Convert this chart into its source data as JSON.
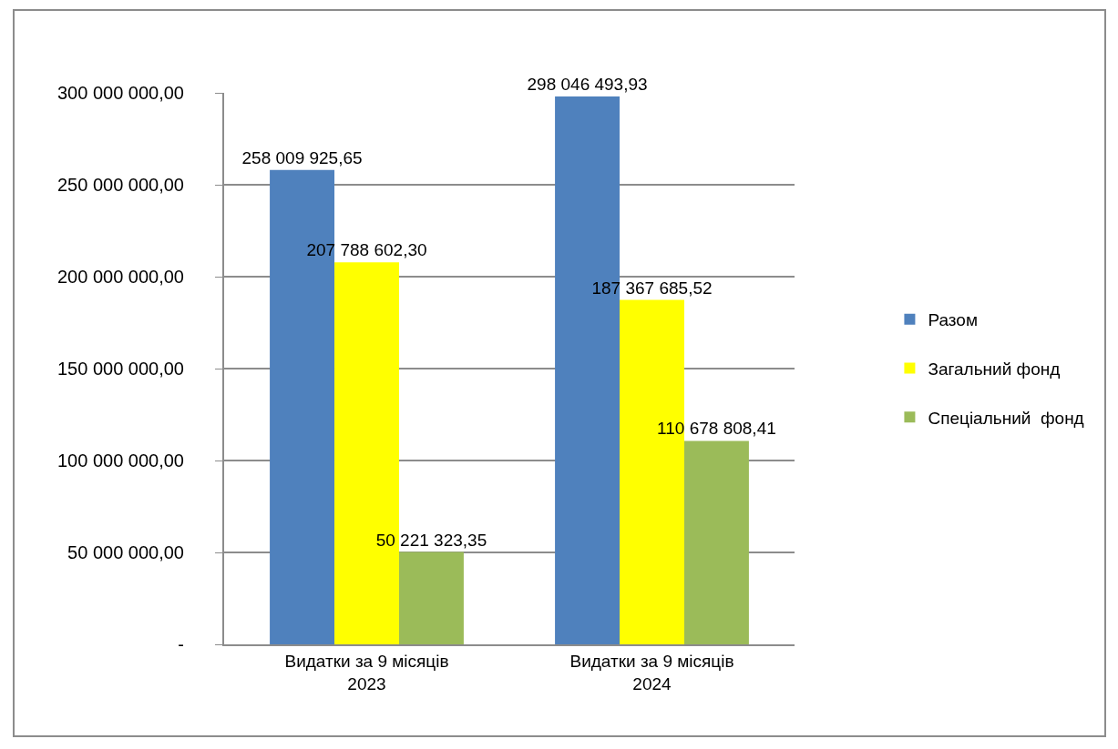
{
  "chart_data": {
    "type": "bar",
    "categories": [
      "Видатки за 9 місяців 2023",
      "Видатки за 9 місяців 2024"
    ],
    "series": [
      {
        "name": "Разом",
        "color": "#4f81bd",
        "values": [
          258009925.65,
          298046493.93
        ],
        "value_labels": [
          "258 009 925,65",
          "298 046 493,93"
        ]
      },
      {
        "name": "Загальний фонд",
        "color": "#ffff00",
        "values": [
          207788602.3,
          187367685.52
        ],
        "value_labels": [
          "207 788 602,30",
          "187 367 685,52"
        ]
      },
      {
        "name": "Спеціальний  фонд",
        "color": "#9bbb59",
        "values": [
          50221323.35,
          110678808.41
        ],
        "value_labels": [
          "50 221 323,35",
          "110 678 808,41"
        ]
      }
    ],
    "ylim": [
      0,
      300000000
    ],
    "yticks": [
      {
        "value": 0,
        "label": "-"
      },
      {
        "value": 50000000,
        "label": "50 000 000,00"
      },
      {
        "value": 100000000,
        "label": "100 000 000,00"
      },
      {
        "value": 150000000,
        "label": "150 000 000,00"
      },
      {
        "value": 200000000,
        "label": "200 000 000,00"
      },
      {
        "value": 250000000,
        "label": "250 000 000,00"
      },
      {
        "value": 300000000,
        "label": "300 000 000,00"
      }
    ],
    "grid": "y",
    "legend": "right"
  }
}
